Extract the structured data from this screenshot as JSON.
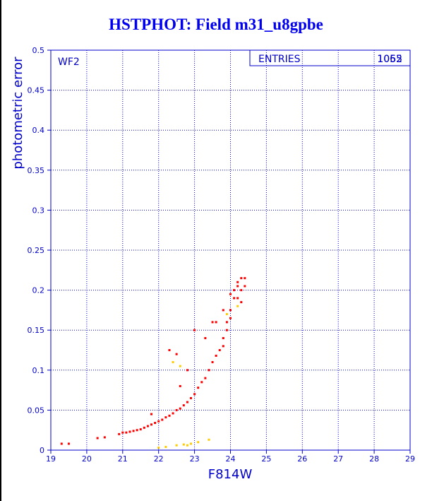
{
  "chart_data": {
    "type": "scatter",
    "title": "HSTPHOT: Field m31_u8gpbe",
    "xlabel": "F814W",
    "ylabel": "photometric error",
    "xlim": [
      19,
      29
    ],
    "ylim": [
      0,
      0.5
    ],
    "x_ticks": [
      "19",
      "20",
      "21",
      "22",
      "23",
      "24",
      "25",
      "26",
      "27",
      "28",
      "29"
    ],
    "y_ticks": [
      "0",
      "0.05",
      "0.1",
      "0.15",
      "0.2",
      "0.25",
      "0.3",
      "0.35",
      "0.4",
      "0.45",
      "0.5"
    ],
    "grid": true,
    "panel_label": "WF2",
    "stats_box": {
      "label": "ENTRIES",
      "value": "1052",
      "overprinted_value": "1065"
    },
    "colors": {
      "axes": "#0000cc",
      "main_points": "#ff0000",
      "secondary_points": "#ffcc00",
      "title": "#0000ee"
    },
    "series": [
      {
        "color": "#ff0000",
        "points": [
          [
            19.3,
            0.008
          ],
          [
            19.5,
            0.008
          ],
          [
            20.3,
            0.015
          ],
          [
            20.5,
            0.016
          ],
          [
            20.9,
            0.02
          ],
          [
            21.0,
            0.022
          ],
          [
            21.2,
            0.023
          ],
          [
            21.4,
            0.025
          ],
          [
            21.6,
            0.028
          ],
          [
            21.8,
            0.032
          ],
          [
            22.0,
            0.036
          ],
          [
            22.2,
            0.041
          ],
          [
            22.4,
            0.046
          ],
          [
            22.6,
            0.052
          ],
          [
            22.8,
            0.06
          ],
          [
            23.0,
            0.07
          ],
          [
            23.2,
            0.085
          ],
          [
            23.4,
            0.1
          ],
          [
            23.6,
            0.118
          ],
          [
            23.8,
            0.14
          ],
          [
            23.9,
            0.16
          ],
          [
            24.0,
            0.175
          ],
          [
            24.1,
            0.19
          ],
          [
            24.2,
            0.205
          ],
          [
            24.3,
            0.215
          ],
          [
            24.4,
            0.215
          ],
          [
            24.3,
            0.2
          ],
          [
            24.2,
            0.19
          ],
          [
            24.1,
            0.2
          ],
          [
            24.0,
            0.165
          ],
          [
            23.9,
            0.15
          ],
          [
            23.8,
            0.13
          ],
          [
            23.7,
            0.125
          ],
          [
            23.5,
            0.11
          ],
          [
            23.3,
            0.09
          ],
          [
            23.1,
            0.078
          ],
          [
            22.9,
            0.065
          ],
          [
            22.7,
            0.056
          ],
          [
            22.5,
            0.05
          ],
          [
            22.3,
            0.043
          ],
          [
            22.1,
            0.038
          ],
          [
            21.9,
            0.034
          ],
          [
            21.7,
            0.03
          ],
          [
            21.5,
            0.026
          ],
          [
            21.3,
            0.024
          ],
          [
            21.1,
            0.022
          ],
          [
            22.5,
            0.12
          ],
          [
            22.8,
            0.1
          ],
          [
            23.0,
            0.15
          ],
          [
            23.3,
            0.14
          ],
          [
            23.5,
            0.16
          ],
          [
            22.3,
            0.125
          ],
          [
            22.6,
            0.08
          ],
          [
            21.8,
            0.045
          ],
          [
            23.6,
            0.16
          ],
          [
            23.8,
            0.175
          ],
          [
            24.0,
            0.195
          ],
          [
            24.2,
            0.21
          ],
          [
            24.4,
            0.205
          ],
          [
            24.3,
            0.185
          ]
        ]
      },
      {
        "color": "#ffcc00",
        "points": [
          [
            22.0,
            0.003
          ],
          [
            22.2,
            0.004
          ],
          [
            22.5,
            0.006
          ],
          [
            22.7,
            0.007
          ],
          [
            22.8,
            0.006
          ],
          [
            22.9,
            0.008
          ],
          [
            23.1,
            0.01
          ],
          [
            23.4,
            0.013
          ],
          [
            22.4,
            0.11
          ],
          [
            22.6,
            0.105
          ],
          [
            23.9,
            0.17
          ],
          [
            24.2,
            0.18
          ]
        ]
      }
    ]
  }
}
